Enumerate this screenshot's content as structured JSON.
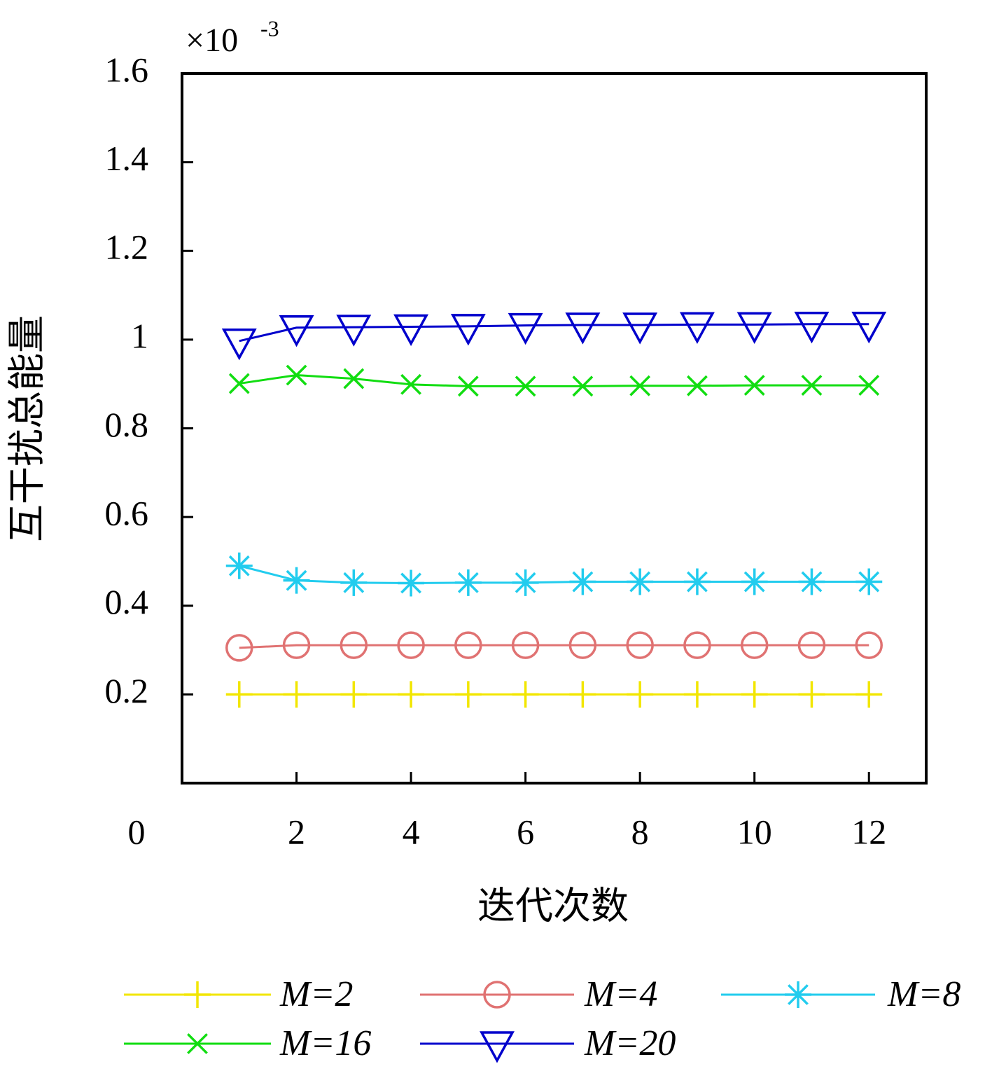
{
  "chart_data": {
    "type": "line",
    "x_label": "迭代次数",
    "y_label": "互干扰总能量",
    "y_scale_label": "×10",
    "y_scale_exponent": "-3",
    "x": [
      1,
      2,
      3,
      4,
      5,
      6,
      7,
      8,
      9,
      10,
      11,
      12
    ],
    "xlim": [
      0,
      13
    ],
    "xticks": [
      2,
      4,
      6,
      8,
      10,
      12
    ],
    "ylim": [
      0,
      1.6
    ],
    "yticks": [
      0,
      0.2,
      0.4,
      0.6,
      0.8,
      1.0,
      1.2,
      1.4,
      1.6
    ],
    "series": [
      {
        "name": "M=2",
        "color": "#f2e600",
        "marker": "plus",
        "values": [
          0.2,
          0.2,
          0.2,
          0.2,
          0.2,
          0.2,
          0.2,
          0.2,
          0.2,
          0.2,
          0.2,
          0.2
        ]
      },
      {
        "name": "M=4",
        "color": "#e07272",
        "marker": "circle",
        "values": [
          0.305,
          0.311,
          0.311,
          0.311,
          0.311,
          0.311,
          0.311,
          0.311,
          0.311,
          0.311,
          0.311,
          0.311
        ]
      },
      {
        "name": "M=8",
        "color": "#22ccee",
        "marker": "asterisk",
        "values": [
          0.49,
          0.457,
          0.452,
          0.451,
          0.452,
          0.452,
          0.454,
          0.454,
          0.454,
          0.454,
          0.454,
          0.454
        ]
      },
      {
        "name": "M=16",
        "color": "#11dd11",
        "marker": "cross",
        "values": [
          0.901,
          0.92,
          0.912,
          0.899,
          0.895,
          0.895,
          0.895,
          0.896,
          0.896,
          0.897,
          0.897,
          0.897
        ]
      },
      {
        "name": "M=20",
        "color": "#0000cc",
        "marker": "triangle-down",
        "values": [
          0.997,
          1.027,
          1.028,
          1.029,
          1.03,
          1.032,
          1.033,
          1.033,
          1.034,
          1.034,
          1.035,
          1.035
        ]
      }
    ]
  }
}
